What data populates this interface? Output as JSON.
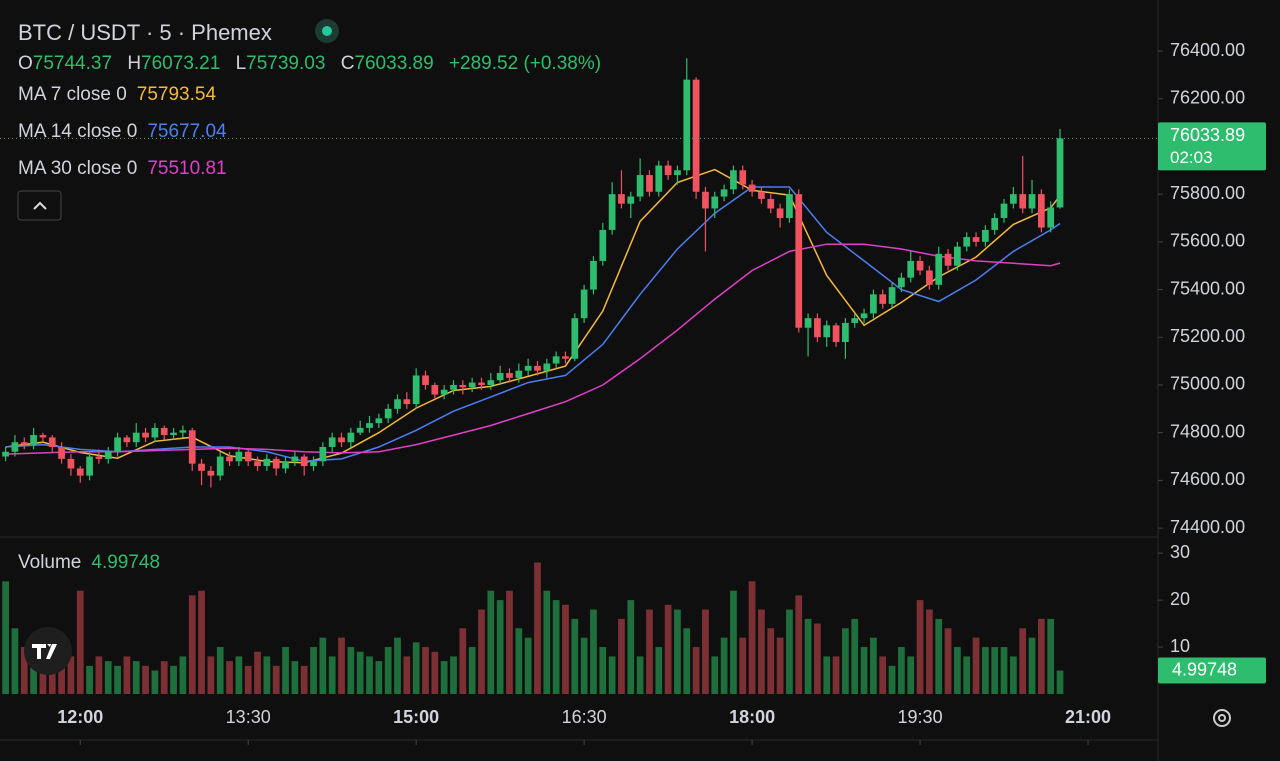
{
  "chart_data": {
    "type": "candlestick",
    "title": "BTC / USDT · 5 · Phemex",
    "legend_labels": {
      "open": "O",
      "high": "H",
      "low": "L",
      "close": "C"
    },
    "change": "+289.52 (+0.38%)",
    "countdown": "02:03",
    "up_color": "#2ebd6e",
    "down_color": "#f0525f",
    "volume_up_color": "#1f6f3c",
    "volume_down_color": "#7d3034",
    "x": [
      680,
      685,
      690,
      695,
      700,
      705,
      710,
      715,
      720,
      725,
      730,
      735,
      740,
      745,
      750,
      755,
      760,
      765,
      770,
      775,
      780,
      785,
      790,
      795,
      800,
      805,
      810,
      815,
      820,
      825,
      830,
      835,
      840,
      845,
      850,
      855,
      860,
      865,
      870,
      875,
      880,
      885,
      890,
      895,
      900,
      905,
      910,
      915,
      920,
      925,
      930,
      935,
      940,
      945,
      950,
      955,
      960,
      965,
      970,
      975,
      980,
      985,
      990,
      995,
      1000,
      1005,
      1010,
      1015,
      1020,
      1025,
      1030,
      1035,
      1040,
      1045,
      1050,
      1055,
      1060,
      1065,
      1070,
      1075,
      1080,
      1085,
      1090,
      1095,
      1100,
      1105,
      1110,
      1115,
      1120,
      1125,
      1130,
      1135,
      1140,
      1145,
      1150,
      1155,
      1160,
      1165,
      1170,
      1175,
      1180,
      1185,
      1190,
      1195,
      1200,
      1205,
      1210,
      1215,
      1220,
      1225,
      1230,
      1235,
      1240,
      1245
    ],
    "ohlc": [
      [
        74700,
        74740,
        74680,
        74720
      ],
      [
        74720,
        74790,
        74700,
        74760
      ],
      [
        74760,
        74780,
        74730,
        74750
      ],
      [
        74750,
        74820,
        74730,
        74790
      ],
      [
        74790,
        74800,
        74760,
        74780
      ],
      [
        74780,
        74790,
        74720,
        74740
      ],
      [
        74740,
        74760,
        74670,
        74690
      ],
      [
        74690,
        74710,
        74620,
        74650
      ],
      [
        74650,
        74660,
        74590,
        74620
      ],
      [
        74620,
        74720,
        74600,
        74700
      ],
      [
        74700,
        74730,
        74670,
        74690
      ],
      [
        74690,
        74740,
        74670,
        74720
      ],
      [
        74720,
        74800,
        74700,
        74780
      ],
      [
        74780,
        74790,
        74740,
        74760
      ],
      [
        74760,
        74840,
        74740,
        74800
      ],
      [
        74800,
        74820,
        74760,
        74780
      ],
      [
        74780,
        74840,
        74760,
        74820
      ],
      [
        74820,
        74830,
        74770,
        74790
      ],
      [
        74790,
        74820,
        74770,
        74800
      ],
      [
        74800,
        74830,
        74780,
        74810
      ],
      [
        74810,
        74820,
        74640,
        74670
      ],
      [
        74670,
        74690,
        74580,
        74640
      ],
      [
        74640,
        74660,
        74570,
        74620
      ],
      [
        74620,
        74720,
        74600,
        74700
      ],
      [
        74700,
        74720,
        74660,
        74680
      ],
      [
        74680,
        74740,
        74660,
        74720
      ],
      [
        74720,
        74730,
        74660,
        74680
      ],
      [
        74680,
        74700,
        74640,
        74660
      ],
      [
        74660,
        74710,
        74640,
        74690
      ],
      [
        74690,
        74700,
        74620,
        74650
      ],
      [
        74650,
        74700,
        74630,
        74680
      ],
      [
        74680,
        74720,
        74660,
        74700
      ],
      [
        74700,
        74710,
        74620,
        74660
      ],
      [
        74660,
        74700,
        74640,
        74680
      ],
      [
        74680,
        74760,
        74660,
        74740
      ],
      [
        74740,
        74800,
        74720,
        74780
      ],
      [
        74780,
        74800,
        74740,
        74760
      ],
      [
        74760,
        74820,
        74740,
        74800
      ],
      [
        74800,
        74850,
        74790,
        74820
      ],
      [
        74820,
        74870,
        74800,
        74840
      ],
      [
        74840,
        74880,
        74820,
        74860
      ],
      [
        74860,
        74920,
        74840,
        74900
      ],
      [
        74900,
        74960,
        74880,
        74940
      ],
      [
        74940,
        74970,
        74900,
        74920
      ],
      [
        74920,
        75070,
        74900,
        75040
      ],
      [
        75040,
        75060,
        74980,
        75000
      ],
      [
        75000,
        75010,
        74940,
        74960
      ],
      [
        74960,
        75000,
        74940,
        74980
      ],
      [
        74980,
        75020,
        74960,
        75000
      ],
      [
        75000,
        75020,
        74960,
        74990
      ],
      [
        74990,
        75030,
        74970,
        75010
      ],
      [
        75010,
        75030,
        74980,
        75000
      ],
      [
        75000,
        75050,
        74980,
        75020
      ],
      [
        75020,
        75080,
        75000,
        75050
      ],
      [
        75050,
        75070,
        75010,
        75030
      ],
      [
        75030,
        75090,
        75010,
        75060
      ],
      [
        75060,
        75110,
        75040,
        75080
      ],
      [
        75080,
        75100,
        75040,
        75060
      ],
      [
        75060,
        75110,
        75030,
        75090
      ],
      [
        75090,
        75140,
        75070,
        75120
      ],
      [
        75120,
        75140,
        75090,
        75110
      ],
      [
        75110,
        75300,
        75100,
        75280
      ],
      [
        75280,
        75420,
        75260,
        75400
      ],
      [
        75400,
        75540,
        75380,
        75520
      ],
      [
        75520,
        75680,
        75500,
        75650
      ],
      [
        75650,
        75850,
        75630,
        75800
      ],
      [
        75800,
        75900,
        75740,
        75760
      ],
      [
        75760,
        75810,
        75700,
        75790
      ],
      [
        75790,
        75950,
        75770,
        75880
      ],
      [
        75880,
        75900,
        75790,
        75810
      ],
      [
        75810,
        75940,
        75790,
        75920
      ],
      [
        75920,
        75940,
        75860,
        75880
      ],
      [
        75880,
        75920,
        75840,
        75900
      ],
      [
        75900,
        76370,
        75880,
        76280
      ],
      [
        76280,
        76290,
        75780,
        75810
      ],
      [
        75810,
        75830,
        75560,
        75740
      ],
      [
        75740,
        75810,
        75700,
        75790
      ],
      [
        75790,
        75840,
        75770,
        75820
      ],
      [
        75820,
        75920,
        75800,
        75900
      ],
      [
        75900,
        75920,
        75820,
        75840
      ],
      [
        75840,
        75860,
        75790,
        75810
      ],
      [
        75810,
        75830,
        75760,
        75780
      ],
      [
        75780,
        75800,
        75720,
        75740
      ],
      [
        75740,
        75760,
        75660,
        75700
      ],
      [
        75700,
        75820,
        75680,
        75800
      ],
      [
        75800,
        75820,
        75220,
        75240
      ],
      [
        75240,
        75300,
        75120,
        75280
      ],
      [
        75280,
        75300,
        75180,
        75200
      ],
      [
        75200,
        75270,
        75160,
        75250
      ],
      [
        75250,
        75260,
        75160,
        75180
      ],
      [
        75180,
        75280,
        75110,
        75260
      ],
      [
        75260,
        75300,
        75240,
        75280
      ],
      [
        75280,
        75320,
        75260,
        75300
      ],
      [
        75300,
        75400,
        75280,
        75380
      ],
      [
        75380,
        75400,
        75320,
        75340
      ],
      [
        75340,
        75430,
        75320,
        75410
      ],
      [
        75410,
        75470,
        75390,
        75450
      ],
      [
        75450,
        75560,
        75430,
        75520
      ],
      [
        75520,
        75540,
        75460,
        75480
      ],
      [
        75480,
        75500,
        75400,
        75420
      ],
      [
        75420,
        75580,
        75400,
        75550
      ],
      [
        75550,
        75570,
        75480,
        75500
      ],
      [
        75500,
        75600,
        75480,
        75580
      ],
      [
        75580,
        75640,
        75560,
        75620
      ],
      [
        75620,
        75640,
        75580,
        75600
      ],
      [
        75600,
        75670,
        75580,
        75650
      ],
      [
        75650,
        75720,
        75630,
        75700
      ],
      [
        75700,
        75780,
        75680,
        75760
      ],
      [
        75760,
        75830,
        75740,
        75800
      ],
      [
        75800,
        75960,
        75720,
        75740
      ],
      [
        75740,
        75860,
        75720,
        75800
      ],
      [
        75800,
        75820,
        75640,
        75660
      ],
      [
        75660,
        75770,
        75640,
        75744.37
      ],
      [
        75744.37,
        76073.21,
        75739.03,
        76033.89
      ]
    ],
    "ma": [
      {
        "name": "MA 7 close 0",
        "color": "#f5b93a",
        "x": [
          680,
          700,
          720,
          740,
          760,
          780,
          800,
          820,
          840,
          860,
          880,
          900,
          920,
          940,
          960,
          980,
          1000,
          1020,
          1040,
          1060,
          1080,
          1100,
          1120,
          1140,
          1160,
          1180,
          1200,
          1220,
          1240,
          1245
        ],
        "values": [
          74740,
          74760,
          74717,
          74693,
          74764,
          74781,
          74703,
          74679,
          74674,
          74714,
          74800,
          74903,
          74977,
          74994,
          75036,
          75079,
          75310,
          75686,
          75849,
          75903,
          75816,
          75796,
          75459,
          75250,
          75346,
          75453,
          75536,
          75673,
          75743,
          75793.54
        ]
      },
      {
        "name": "MA 14 close 0",
        "color": "#4c7ff0",
        "x": [
          680,
          700,
          720,
          740,
          760,
          780,
          800,
          820,
          840,
          860,
          880,
          900,
          920,
          940,
          960,
          980,
          1000,
          1020,
          1040,
          1060,
          1080,
          1100,
          1120,
          1140,
          1160,
          1180,
          1200,
          1220,
          1240,
          1245
        ],
        "values": [
          74740,
          74750,
          74730,
          74720,
          74730,
          74740,
          74740,
          74720,
          74680,
          74690,
          74740,
          74810,
          74890,
          74950,
          75010,
          75040,
          75170,
          75380,
          75570,
          75720,
          75830,
          75830,
          75640,
          75520,
          75400,
          75350,
          75440,
          75560,
          75650,
          75677.04
        ]
      },
      {
        "name": "MA 30 close 0",
        "color": "#e040c8",
        "x": [
          680,
          700,
          720,
          740,
          760,
          780,
          800,
          820,
          840,
          860,
          880,
          900,
          920,
          940,
          960,
          980,
          1000,
          1020,
          1040,
          1060,
          1080,
          1100,
          1120,
          1140,
          1160,
          1180,
          1200,
          1220,
          1240,
          1245
        ],
        "values": [
          74710,
          74715,
          74720,
          74720,
          74725,
          74730,
          74735,
          74730,
          74720,
          74715,
          74720,
          74750,
          74790,
          74830,
          74880,
          74930,
          75000,
          75110,
          75230,
          75360,
          75480,
          75560,
          75590,
          75590,
          75570,
          75540,
          75520,
          75510,
          75500,
          75510.81
        ]
      }
    ],
    "volume": {
      "name": "Volume",
      "values": [
        24,
        14,
        10,
        8,
        10,
        6,
        8,
        8,
        22,
        6,
        8,
        7,
        6,
        8,
        7,
        6,
        5,
        7,
        6,
        8,
        21,
        22,
        8,
        10,
        7,
        8,
        6,
        9,
        8,
        6,
        10,
        7,
        6,
        10,
        12,
        8,
        12,
        10,
        9,
        8,
        7,
        10,
        12,
        8,
        11,
        10,
        9,
        7,
        8,
        14,
        10,
        18,
        22,
        20,
        22,
        14,
        12,
        28,
        22,
        20,
        19,
        16,
        12,
        18,
        10,
        8,
        16,
        20,
        8,
        18,
        10,
        19,
        18,
        14,
        10,
        18,
        8,
        12,
        22,
        12,
        24,
        18,
        14,
        12,
        18,
        21,
        16,
        15,
        8,
        8,
        14,
        16,
        10,
        12,
        8,
        6,
        10,
        8,
        20,
        18,
        16,
        14,
        10,
        8,
        12,
        10,
        10,
        10,
        8,
        14,
        12,
        16,
        16,
        4.99748
      ],
      "ylim": [
        0,
        32.8
      ],
      "yticks": [
        10,
        20,
        30
      ]
    },
    "xlim": [
      677,
      1297.5
    ],
    "xticks": [
      {
        "value": 720,
        "label": "12:00"
      },
      {
        "value": 810,
        "label": "13:30"
      },
      {
        "value": 900,
        "label": "15:00"
      },
      {
        "value": 990,
        "label": "16:30"
      },
      {
        "value": 1080,
        "label": "18:00"
      },
      {
        "value": 1170,
        "label": "19:30"
      },
      {
        "value": 1260,
        "label": "21:00"
      }
    ],
    "ylim": [
      74371,
      76614
    ],
    "yticks": [
      {
        "value": 74400,
        "label": "74400.00"
      },
      {
        "value": 74600,
        "label": "74600.00"
      },
      {
        "value": 74800,
        "label": "74800.00"
      },
      {
        "value": 75000,
        "label": "75000.00"
      },
      {
        "value": 75200,
        "label": "75200.00"
      },
      {
        "value": 75400,
        "label": "75400.00"
      },
      {
        "value": 75600,
        "label": "75600.00"
      },
      {
        "value": 75800,
        "label": "75800.00"
      },
      {
        "value": 76000,
        "label": "76000.00"
      },
      {
        "value": 76200,
        "label": "76200.00"
      },
      {
        "value": 76400,
        "label": "76400.00"
      }
    ]
  }
}
